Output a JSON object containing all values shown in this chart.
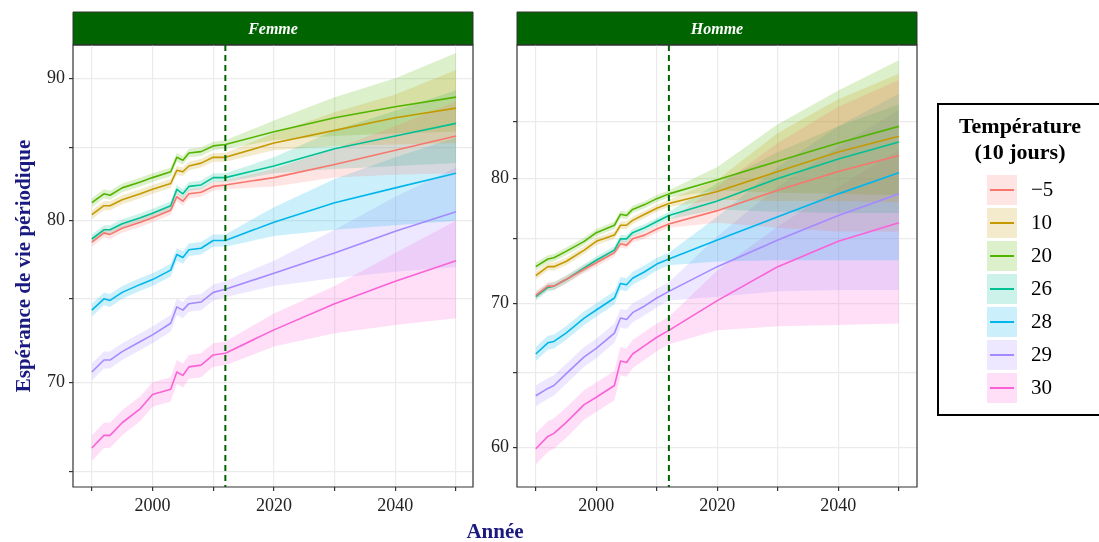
{
  "chart_data": [
    {
      "type": "line",
      "title": "Femme",
      "xlabel": "Année",
      "ylabel": "Espérance de vie périodique",
      "log": "y",
      "grid": true,
      "marker": "none",
      "line_style": "solid",
      "legend": "right",
      "legend_title": "Température (10 jours)",
      "x": [
        1990,
        1992,
        1993,
        1995,
        1998,
        2000,
        2003,
        2004,
        2005,
        2006,
        2008,
        2010,
        2012,
        2020,
        2030,
        2040,
        2050
      ],
      "xlim": [
        1986.9,
        2052.8
      ],
      "xticks": [
        {
          "value": 1990,
          "label": null
        },
        2000,
        {
          "value": 2010,
          "label": null
        },
        2020,
        {
          "value": 2030,
          "label": null
        },
        2040,
        {
          "value": 2050,
          "label": null
        }
      ],
      "ylim": [
        64.2,
        92.5
      ],
      "yticks": [
        {
          "value": 65,
          "label": null
        },
        70,
        {
          "value": 75,
          "label": null
        },
        80,
        {
          "value": 85,
          "label": null
        },
        90
      ],
      "ref_lines": [
        {
          "axis": "x",
          "value": 2012,
          "color": "#006400",
          "line_style": "dashed"
        }
      ],
      "series": [
        {
          "name": "−5",
          "color": "#f8766d",
          "values": [
            78.6,
            79.2,
            79.1,
            79.5,
            79.9,
            80.2,
            80.7,
            81.6,
            81.3,
            81.8,
            81.9,
            82.3,
            82.4,
            82.9,
            83.8,
            84.8,
            85.8
          ],
          "lower": [
            78.3,
            78.9,
            78.8,
            79.2,
            79.6,
            79.9,
            80.4,
            81.3,
            81.0,
            81.5,
            81.6,
            82.0,
            82.1,
            82.3,
            82.9,
            83.1,
            83.2
          ],
          "upper": [
            78.9,
            79.5,
            79.4,
            79.8,
            80.2,
            80.5,
            81.0,
            81.9,
            81.6,
            82.1,
            82.2,
            82.6,
            82.7,
            83.5,
            84.9,
            86.5,
            88.3
          ]
        },
        {
          "name": "10",
          "color": "#c49a00",
          "values": [
            80.4,
            81.0,
            81.0,
            81.4,
            81.8,
            82.1,
            82.5,
            83.4,
            83.3,
            83.7,
            83.9,
            84.3,
            84.3,
            85.3,
            86.2,
            87.1,
            87.8
          ],
          "lower": [
            80.1,
            80.7,
            80.7,
            81.1,
            81.5,
            81.8,
            82.2,
            83.1,
            83.0,
            83.4,
            83.6,
            84.0,
            84.0,
            84.8,
            85.1,
            85.2,
            85.3
          ],
          "upper": [
            80.7,
            81.3,
            81.3,
            81.7,
            82.1,
            82.4,
            82.8,
            83.7,
            83.6,
            84.0,
            84.2,
            84.6,
            84.6,
            86.0,
            87.5,
            88.8,
            90.6
          ]
        },
        {
          "name": "20",
          "color": "#53b400",
          "values": [
            81.2,
            81.8,
            81.7,
            82.2,
            82.6,
            82.9,
            83.3,
            84.3,
            84.1,
            84.6,
            84.7,
            85.1,
            85.2,
            86.1,
            87.1,
            87.9,
            88.6
          ],
          "lower": [
            80.9,
            81.5,
            81.4,
            81.9,
            82.3,
            82.6,
            83.0,
            84.0,
            83.8,
            84.3,
            84.4,
            84.8,
            84.9,
            85.5,
            85.8,
            86.0,
            86.1
          ],
          "upper": [
            81.5,
            82.1,
            82.0,
            82.5,
            82.9,
            83.2,
            83.6,
            84.6,
            84.4,
            84.9,
            85.0,
            85.4,
            85.5,
            86.9,
            88.6,
            90.0,
            91.9
          ]
        },
        {
          "name": "26",
          "color": "#00c094",
          "values": [
            78.8,
            79.4,
            79.4,
            79.8,
            80.2,
            80.5,
            81.0,
            82.1,
            81.8,
            82.3,
            82.4,
            82.9,
            82.9,
            83.7,
            84.9,
            85.8,
            86.7
          ],
          "lower": [
            78.5,
            79.1,
            79.1,
            79.5,
            79.9,
            80.2,
            80.7,
            81.8,
            81.5,
            82.0,
            82.1,
            82.6,
            82.6,
            83.2,
            83.5,
            83.7,
            83.9
          ],
          "upper": [
            79.1,
            79.7,
            79.7,
            80.1,
            80.5,
            80.8,
            81.3,
            82.4,
            82.1,
            82.6,
            82.7,
            83.2,
            83.2,
            84.3,
            86.2,
            87.6,
            89.1
          ]
        },
        {
          "name": "28",
          "color": "#00b6eb",
          "values": [
            74.3,
            75.0,
            74.9,
            75.4,
            75.9,
            76.2,
            76.8,
            77.8,
            77.6,
            78.1,
            78.2,
            78.7,
            78.7,
            79.9,
            81.2,
            82.2,
            83.2
          ],
          "lower": [
            73.9,
            74.6,
            74.5,
            75.0,
            75.5,
            75.8,
            76.4,
            77.4,
            77.2,
            77.7,
            77.8,
            78.3,
            78.3,
            79.0,
            79.4,
            79.7,
            80.0
          ],
          "upper": [
            74.7,
            75.4,
            75.3,
            75.8,
            76.3,
            76.6,
            77.2,
            78.2,
            78.0,
            78.5,
            78.6,
            79.1,
            79.1,
            80.9,
            82.8,
            84.3,
            85.7
          ]
        },
        {
          "name": "29",
          "color": "#a58aff",
          "values": [
            70.6,
            71.3,
            71.3,
            71.8,
            72.4,
            72.8,
            73.5,
            74.5,
            74.3,
            74.7,
            74.8,
            75.4,
            75.6,
            76.6,
            77.9,
            79.3,
            80.6
          ],
          "lower": [
            70.1,
            70.8,
            70.8,
            71.3,
            71.9,
            72.3,
            73.0,
            74.0,
            73.8,
            74.2,
            74.3,
            74.9,
            75.1,
            75.8,
            76.3,
            76.7,
            77.0
          ],
          "upper": [
            71.1,
            71.8,
            71.8,
            72.3,
            72.9,
            73.3,
            74.0,
            75.0,
            74.8,
            75.2,
            75.3,
            75.9,
            76.1,
            77.4,
            79.4,
            81.6,
            83.6
          ]
        },
        {
          "name": "30",
          "color": "#fb61d7",
          "values": [
            66.3,
            67.0,
            67.0,
            67.7,
            68.5,
            69.3,
            69.6,
            70.6,
            70.4,
            70.9,
            71.0,
            71.6,
            71.7,
            73.1,
            74.7,
            76.1,
            77.4
          ],
          "lower": [
            65.6,
            66.3,
            66.3,
            67.0,
            67.8,
            68.6,
            68.9,
            69.9,
            69.7,
            70.2,
            70.3,
            70.9,
            71.0,
            72.1,
            72.9,
            73.4,
            73.8
          ],
          "upper": [
            67.0,
            67.7,
            67.7,
            68.4,
            69.2,
            70.0,
            70.3,
            71.3,
            71.1,
            71.6,
            71.7,
            72.3,
            72.4,
            74.1,
            75.8,
            77.9,
            80.0
          ]
        }
      ]
    },
    {
      "type": "line",
      "title": "Homme",
      "log": "y",
      "grid": true,
      "marker": "none",
      "line_style": "solid",
      "x": [
        1990,
        1992,
        1993,
        1995,
        1998,
        2000,
        2003,
        2004,
        2005,
        2006,
        2008,
        2010,
        2012,
        2020,
        2030,
        2040,
        2050
      ],
      "xlim": [
        1986.9,
        2053.0
      ],
      "xticks": [
        {
          "value": 1990,
          "label": null
        },
        2000,
        {
          "value": 2010,
          "label": null
        },
        2020,
        {
          "value": 2030,
          "label": null
        },
        2040,
        {
          "value": 2050,
          "label": null
        }
      ],
      "ylim": [
        57.5,
        92.3
      ],
      "yticks": [
        60,
        {
          "value": 65,
          "label": null
        },
        70,
        {
          "value": 75,
          "label": null
        },
        80,
        {
          "value": 85,
          "label": null
        }
      ],
      "ref_lines": [
        {
          "axis": "x",
          "value": 2012,
          "color": "#006400",
          "line_style": "dashed"
        }
      ],
      "series": [
        {
          "name": "−5",
          "color": "#f8766d",
          "values": [
            70.6,
            71.3,
            71.3,
            71.8,
            72.6,
            73.1,
            73.9,
            74.6,
            74.5,
            75.0,
            75.3,
            75.8,
            76.2,
            77.3,
            79.0,
            80.6,
            82.0
          ],
          "lower": [
            70.3,
            71.0,
            71.0,
            71.5,
            72.3,
            72.8,
            73.6,
            74.3,
            74.2,
            74.7,
            75.0,
            75.5,
            75.9,
            76.3,
            75.9,
            75.6,
            75.6
          ],
          "upper": [
            70.9,
            71.6,
            71.6,
            72.1,
            72.9,
            73.4,
            74.2,
            74.9,
            74.8,
            75.3,
            75.6,
            76.1,
            76.5,
            79.3,
            83.1,
            86.4,
            88.9
          ]
        },
        {
          "name": "10",
          "color": "#c49a00",
          "values": [
            72.1,
            72.8,
            72.8,
            73.2,
            74.1,
            74.8,
            75.3,
            76.1,
            76.1,
            76.5,
            77.0,
            77.5,
            77.9,
            78.9,
            80.6,
            82.3,
            83.7
          ],
          "lower": [
            71.8,
            72.5,
            72.5,
            72.9,
            73.8,
            74.5,
            75.0,
            75.8,
            75.8,
            76.2,
            76.7,
            77.2,
            77.6,
            78.2,
            78.1,
            78.1,
            78.0
          ],
          "upper": [
            72.4,
            73.1,
            73.1,
            73.5,
            74.4,
            75.1,
            75.6,
            76.4,
            76.4,
            76.8,
            77.3,
            77.8,
            78.2,
            79.9,
            84.0,
            87.1,
            89.5
          ]
        },
        {
          "name": "20",
          "color": "#53b400",
          "values": [
            72.8,
            73.4,
            73.5,
            74.0,
            74.8,
            75.5,
            76.1,
            77.0,
            76.9,
            77.4,
            77.8,
            78.3,
            78.7,
            79.9,
            81.5,
            83.1,
            84.6
          ],
          "lower": [
            72.5,
            73.1,
            73.2,
            73.7,
            74.5,
            75.2,
            75.8,
            76.7,
            76.6,
            77.1,
            77.5,
            78.0,
            78.4,
            79.0,
            78.8,
            78.7,
            78.6
          ],
          "upper": [
            73.1,
            73.7,
            73.8,
            74.3,
            75.1,
            75.8,
            76.4,
            77.3,
            77.2,
            77.7,
            78.1,
            78.6,
            79.0,
            81.0,
            84.8,
            87.9,
            90.8
          ]
        },
        {
          "name": "26",
          "color": "#00c094",
          "values": [
            70.5,
            71.2,
            71.3,
            71.8,
            72.7,
            73.3,
            74.1,
            75.0,
            75.0,
            75.5,
            75.9,
            76.4,
            76.9,
            78.1,
            80.0,
            81.7,
            83.2
          ],
          "lower": [
            70.2,
            70.9,
            71.0,
            71.5,
            72.4,
            73.0,
            73.8,
            74.7,
            74.7,
            75.2,
            75.6,
            76.1,
            76.6,
            77.4,
            77.2,
            77.1,
            77.1
          ],
          "upper": [
            70.8,
            71.5,
            71.6,
            72.1,
            73.0,
            73.6,
            74.4,
            75.3,
            75.3,
            75.8,
            76.2,
            76.7,
            77.2,
            79.6,
            82.3,
            84.6,
            86.6
          ]
        },
        {
          "name": "28",
          "color": "#00b6eb",
          "values": [
            66.3,
            67.1,
            67.2,
            67.8,
            68.9,
            69.5,
            70.4,
            71.5,
            71.4,
            71.9,
            72.4,
            73.0,
            73.4,
            74.9,
            76.8,
            78.7,
            80.5
          ],
          "lower": [
            65.8,
            66.6,
            66.7,
            67.3,
            68.4,
            69.0,
            69.9,
            71.0,
            70.9,
            71.4,
            71.9,
            72.5,
            72.9,
            73.2,
            73.3,
            73.3,
            73.3
          ],
          "upper": [
            66.8,
            67.6,
            67.7,
            68.3,
            69.4,
            70.0,
            70.9,
            72.0,
            71.9,
            72.4,
            72.9,
            73.5,
            73.9,
            76.8,
            81.0,
            84.6,
            87.6
          ]
        },
        {
          "name": "29",
          "color": "#a58aff",
          "values": [
            63.4,
            63.9,
            64.1,
            64.9,
            66.1,
            66.7,
            67.8,
            68.9,
            68.8,
            69.3,
            69.8,
            70.4,
            70.9,
            72.8,
            74.9,
            76.9,
            78.7
          ],
          "lower": [
            62.7,
            63.2,
            63.4,
            64.2,
            65.4,
            66.0,
            67.1,
            68.2,
            68.1,
            68.6,
            69.1,
            69.7,
            70.2,
            70.5,
            70.9,
            71.0,
            71.0
          ],
          "upper": [
            64.1,
            64.6,
            64.8,
            65.6,
            66.8,
            67.4,
            68.5,
            69.6,
            69.5,
            70.0,
            70.5,
            71.1,
            71.6,
            75.2,
            79.3,
            82.8,
            86.1
          ]
        },
        {
          "name": "30",
          "color": "#fb61d7",
          "values": [
            59.9,
            60.7,
            60.9,
            61.6,
            62.8,
            63.3,
            64.1,
            65.8,
            65.7,
            66.3,
            66.9,
            67.5,
            68.0,
            70.2,
            72.8,
            74.8,
            76.3
          ],
          "lower": [
            58.9,
            59.7,
            59.9,
            60.6,
            61.8,
            62.3,
            63.1,
            64.8,
            64.7,
            65.3,
            65.9,
            66.5,
            67.0,
            68.0,
            68.3,
            68.4,
            68.5
          ],
          "upper": [
            60.9,
            61.7,
            61.9,
            62.6,
            63.8,
            64.3,
            65.1,
            66.8,
            66.7,
            67.3,
            67.9,
            68.5,
            69.0,
            72.5,
            76.0,
            79.3,
            82.5
          ]
        }
      ]
    }
  ]
}
